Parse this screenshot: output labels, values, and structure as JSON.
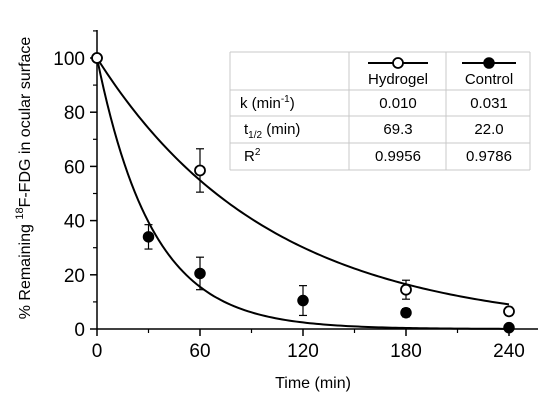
{
  "chart_data": {
    "type": "scatter",
    "xlabel": "Time (min)",
    "ylabel": {
      "prefix": "% Remaining ",
      "superscript": "18",
      "suffix": "F-FDG in ocular surface"
    },
    "xlim": [
      0,
      260
    ],
    "ylim": [
      0,
      110
    ],
    "x_ticks": [
      0,
      60,
      120,
      180,
      240
    ],
    "y_ticks": [
      0,
      20,
      40,
      60,
      80,
      100
    ],
    "grid": false,
    "series": [
      {
        "name": "Hydrogel",
        "marker": "open-circle",
        "x": [
          0,
          60,
          180,
          240
        ],
        "y": [
          100,
          58.5,
          14.5,
          6.5
        ],
        "error": [
          0,
          8,
          3.5,
          1.5
        ],
        "fit": {
          "model": "exponential",
          "k": 0.01
        }
      },
      {
        "name": "Control",
        "marker": "filled-circle",
        "x": [
          0,
          30,
          60,
          120,
          180,
          240
        ],
        "y": [
          100,
          34,
          20.5,
          10.5,
          6,
          0.5
        ],
        "error": [
          0,
          4.5,
          6,
          5.5,
          1.5,
          0.5
        ],
        "fit": {
          "model": "exponential",
          "k": 0.031
        }
      }
    ],
    "table": {
      "columns": [
        "Hydrogel",
        "Control"
      ],
      "rows": [
        {
          "label": "k (min",
          "label_sup": "-1",
          "label_end": ")",
          "values": [
            "0.010",
            "0.031"
          ]
        },
        {
          "label": "t",
          "label_sub": "1/2",
          "label_end": " (min)",
          "values": [
            "69.3",
            "22.0"
          ]
        },
        {
          "label": "R",
          "label_sup": "2",
          "label_end": "",
          "values": [
            "0.9956",
            "0.9786"
          ]
        }
      ]
    }
  }
}
